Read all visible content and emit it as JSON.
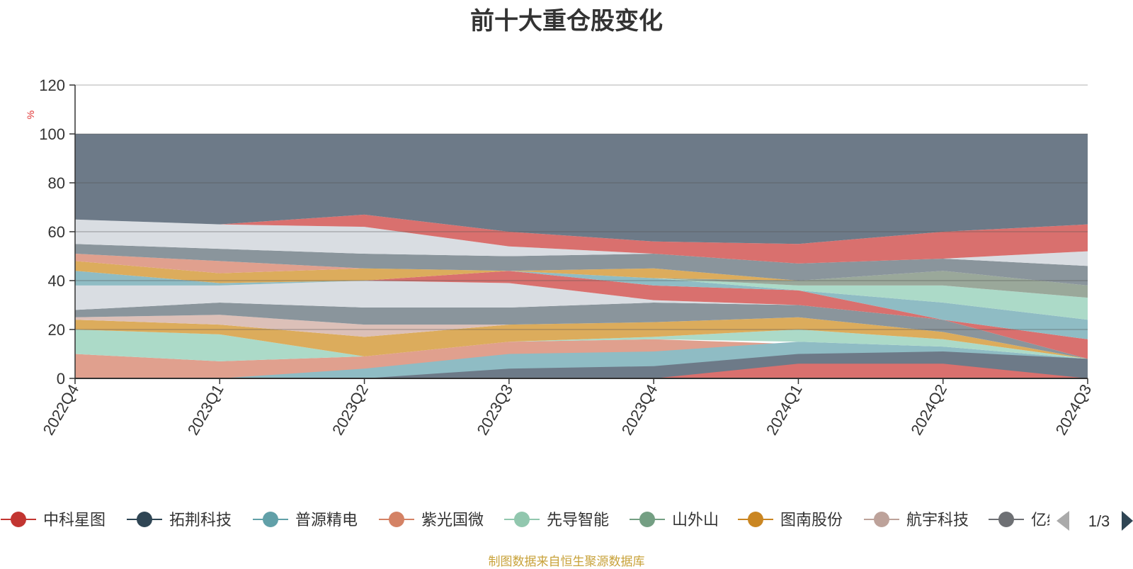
{
  "chart_data": {
    "type": "area",
    "title": "前十大重仓股变化",
    "ylabel": "%",
    "ylim": [
      0,
      120
    ],
    "yticks": [
      0,
      20,
      40,
      60,
      80,
      100,
      120
    ],
    "grid": true,
    "stacked": true,
    "categories": [
      "2022Q4",
      "2023Q1",
      "2023Q2",
      "2023Q3",
      "2023Q4",
      "2024Q1",
      "2024Q2",
      "2024Q3"
    ],
    "bands": [
      {
        "color": "#e0a08e",
        "lower": [
          0,
          0,
          0,
          0,
          0,
          0,
          0,
          0
        ],
        "upper": [
          10,
          7,
          9,
          15,
          16,
          14,
          11,
          8
        ]
      },
      {
        "color": "#8fbcc4",
        "lower": [
          0,
          0,
          0,
          0,
          0,
          0,
          0,
          0
        ],
        "upper": [
          0,
          0,
          4,
          10,
          11,
          15,
          13,
          8
        ]
      },
      {
        "color": "#6d7a88",
        "lower": [
          0,
          0,
          0,
          0,
          0,
          0,
          0,
          0
        ],
        "upper": [
          0,
          0,
          0,
          4,
          5,
          10,
          11,
          8
        ]
      },
      {
        "color": "#d9706e",
        "lower": [
          0,
          0,
          0,
          0,
          0,
          0,
          0,
          0
        ],
        "upper": [
          0,
          0,
          0,
          0,
          0,
          6,
          6,
          0
        ]
      },
      {
        "color": "#acdac8",
        "lower": [
          10,
          7,
          9,
          15,
          16,
          15,
          13,
          8
        ],
        "upper": [
          20,
          18,
          9,
          15,
          17,
          20,
          16,
          8
        ]
      },
      {
        "color": "#dcac5c",
        "lower": [
          20,
          18,
          9,
          15,
          17,
          20,
          16,
          8
        ],
        "upper": [
          24,
          22,
          17,
          22,
          23,
          25,
          19,
          8
        ]
      },
      {
        "color": "#dcc0b8",
        "lower": [
          24,
          22,
          17,
          22,
          23,
          25,
          19,
          8
        ],
        "upper": [
          25,
          26,
          22,
          22,
          23,
          25,
          19,
          8
        ]
      },
      {
        "color": "#8a959c",
        "lower": [
          25,
          26,
          22,
          22,
          23,
          25,
          19,
          8
        ],
        "upper": [
          28,
          31,
          29,
          29,
          31,
          30,
          24,
          8
        ]
      },
      {
        "color": "#d9dde2",
        "lower": [
          28,
          31,
          29,
          29,
          31,
          30,
          24,
          8
        ],
        "upper": [
          38,
          38,
          40,
          39,
          32,
          30,
          24,
          8
        ]
      },
      {
        "color": "#d9706e",
        "lower": [
          38,
          38,
          40,
          39,
          32,
          30,
          24,
          8
        ],
        "upper": [
          38,
          38,
          40,
          44,
          38,
          36,
          24,
          16
        ]
      },
      {
        "color": "#8fbcc4",
        "lower": [
          38,
          38,
          40,
          44,
          38,
          36,
          24,
          16
        ],
        "upper": [
          44,
          39,
          40,
          44,
          41,
          36,
          31,
          24
        ]
      },
      {
        "color": "#acdac8",
        "lower": [
          44,
          39,
          40,
          44,
          41,
          36,
          31,
          24
        ],
        "upper": [
          44,
          39,
          40,
          44,
          41,
          38,
          38,
          33
        ]
      },
      {
        "color": "#9aa89a",
        "lower": [
          44,
          39,
          40,
          44,
          41,
          38,
          38,
          33
        ],
        "upper": [
          44,
          39,
          40,
          44,
          41,
          40,
          44,
          38
        ]
      },
      {
        "color": "#dcac5c",
        "lower": [
          44,
          39,
          40,
          44,
          41,
          40,
          44,
          38
        ],
        "upper": [
          48,
          43,
          45,
          44,
          45,
          40,
          44,
          38
        ]
      },
      {
        "color": "#e0a08e",
        "lower": [
          48,
          43,
          45,
          44,
          45,
          40,
          44,
          38
        ],
        "upper": [
          51,
          48,
          45,
          44,
          45,
          40,
          44,
          38
        ]
      },
      {
        "color": "#8a959c",
        "lower": [
          51,
          48,
          45,
          44,
          45,
          40,
          44,
          38
        ],
        "upper": [
          55,
          53,
          51,
          50,
          51,
          47,
          49,
          46
        ]
      },
      {
        "color": "#d9dde2",
        "lower": [
          55,
          53,
          51,
          50,
          51,
          47,
          49,
          46
        ],
        "upper": [
          65,
          63,
          62,
          54,
          51,
          47,
          49,
          52
        ]
      },
      {
        "color": "#d9706e",
        "lower": [
          65,
          63,
          62,
          54,
          51,
          47,
          49,
          52
        ],
        "upper": [
          65,
          63,
          67,
          60,
          56,
          55,
          60,
          63
        ]
      },
      {
        "color": "#6d7a88",
        "lower": [
          65,
          63,
          67,
          60,
          56,
          55,
          60,
          63
        ],
        "upper": [
          100,
          100,
          100,
          100,
          100,
          100,
          100,
          100
        ]
      }
    ],
    "legend": {
      "placement": "bottom",
      "page": "1/3",
      "items": [
        {
          "name": "中科星图",
          "color": "#c23531"
        },
        {
          "name": "拓荆科技",
          "color": "#2f4554"
        },
        {
          "name": "普源精电",
          "color": "#61a0a8"
        },
        {
          "name": "紫光国微",
          "color": "#d48265"
        },
        {
          "name": "先导智能",
          "color": "#91c7ae"
        },
        {
          "name": "山外山",
          "color": "#749f83"
        },
        {
          "name": "图南股份",
          "color": "#ca8622"
        },
        {
          "name": "航宇科技",
          "color": "#bda29a"
        },
        {
          "name": "亿纬",
          "color": "#6e7074"
        }
      ]
    }
  },
  "footer": {
    "source": "制图数据来自恒生聚源数据库"
  }
}
